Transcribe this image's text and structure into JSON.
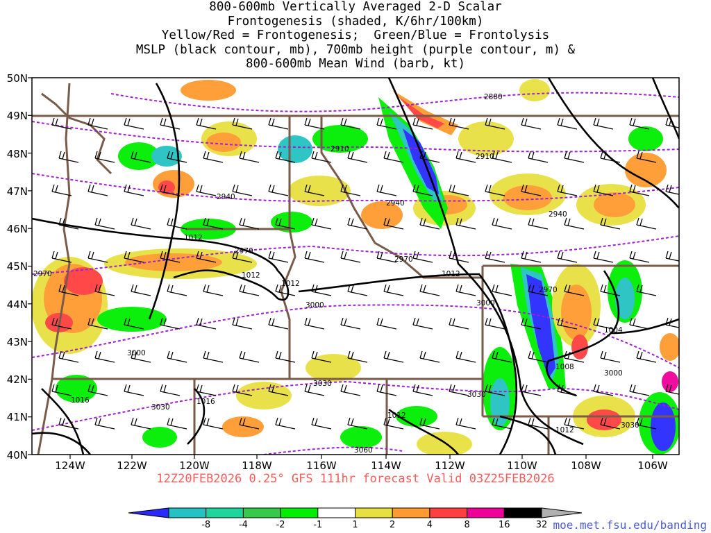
{
  "title_lines": [
    "800-600mb Vertically Averaged 2-D Scalar",
    "Frontogenesis (shaded, K/6hr/100km)",
    "Yellow/Red = Frontogenesis;  Green/Blue = Frontolysis",
    "MSLP (black contour, mb), 700mb height (purple contour, m) &",
    "800-600mb Mean Wind (barb, kt)"
  ],
  "subtitle": "12Z20FEB2026 0.25° GFS 111hr forecast Valid 03Z25FEB2026",
  "url": "moe.met.fsu.edu/banding",
  "axes": {
    "lon_ticks": [
      "124W",
      "122W",
      "120W",
      "118W",
      "116W",
      "114W",
      "112W",
      "110W",
      "108W",
      "106W"
    ],
    "lat_ticks": [
      "50N",
      "49N",
      "48N",
      "47N",
      "46N",
      "45N",
      "44N",
      "43N",
      "42N",
      "41N",
      "40N"
    ]
  },
  "colorbar": {
    "labels": [
      "-8",
      "-4",
      "-2",
      "-1",
      "1",
      "2",
      "4",
      "8",
      "16",
      "32"
    ],
    "colors": [
      "#2a2aff",
      "#24c2c2",
      "#1ed69c",
      "#36c94a",
      "#00ee00",
      "#ffffff",
      "#e8e040",
      "#ff9a30",
      "#ff4040",
      "#f0009a",
      "#000000",
      "#b0b0b0"
    ]
  },
  "height_labels": [
    {
      "text": "2880"
    },
    {
      "text": "2910"
    },
    {
      "text": "2910"
    },
    {
      "text": "2940"
    },
    {
      "text": "2940"
    },
    {
      "text": "2940"
    },
    {
      "text": "2970"
    },
    {
      "text": "2970"
    },
    {
      "text": "2970"
    },
    {
      "text": "2970"
    },
    {
      "text": "3000"
    },
    {
      "text": "3000"
    },
    {
      "text": "3000"
    },
    {
      "text": "3000"
    },
    {
      "text": "3030"
    },
    {
      "text": "3030"
    },
    {
      "text": "3030"
    },
    {
      "text": "3030"
    },
    {
      "text": "3060"
    }
  ],
  "pressure_labels": [
    {
      "text": "1012"
    },
    {
      "text": "1012"
    },
    {
      "text": "1012"
    },
    {
      "text": "1012"
    },
    {
      "text": "1012"
    },
    {
      "text": "1012"
    },
    {
      "text": "1004"
    },
    {
      "text": "1008"
    },
    {
      "text": "1016"
    },
    {
      "text": "1016"
    }
  ],
  "colors": {
    "height_contour": "#a020d0",
    "pressure_contour": "#000000",
    "borders": "#7a5a48",
    "subtitle": "#ff5a5a",
    "url": "#4a5bd6"
  }
}
